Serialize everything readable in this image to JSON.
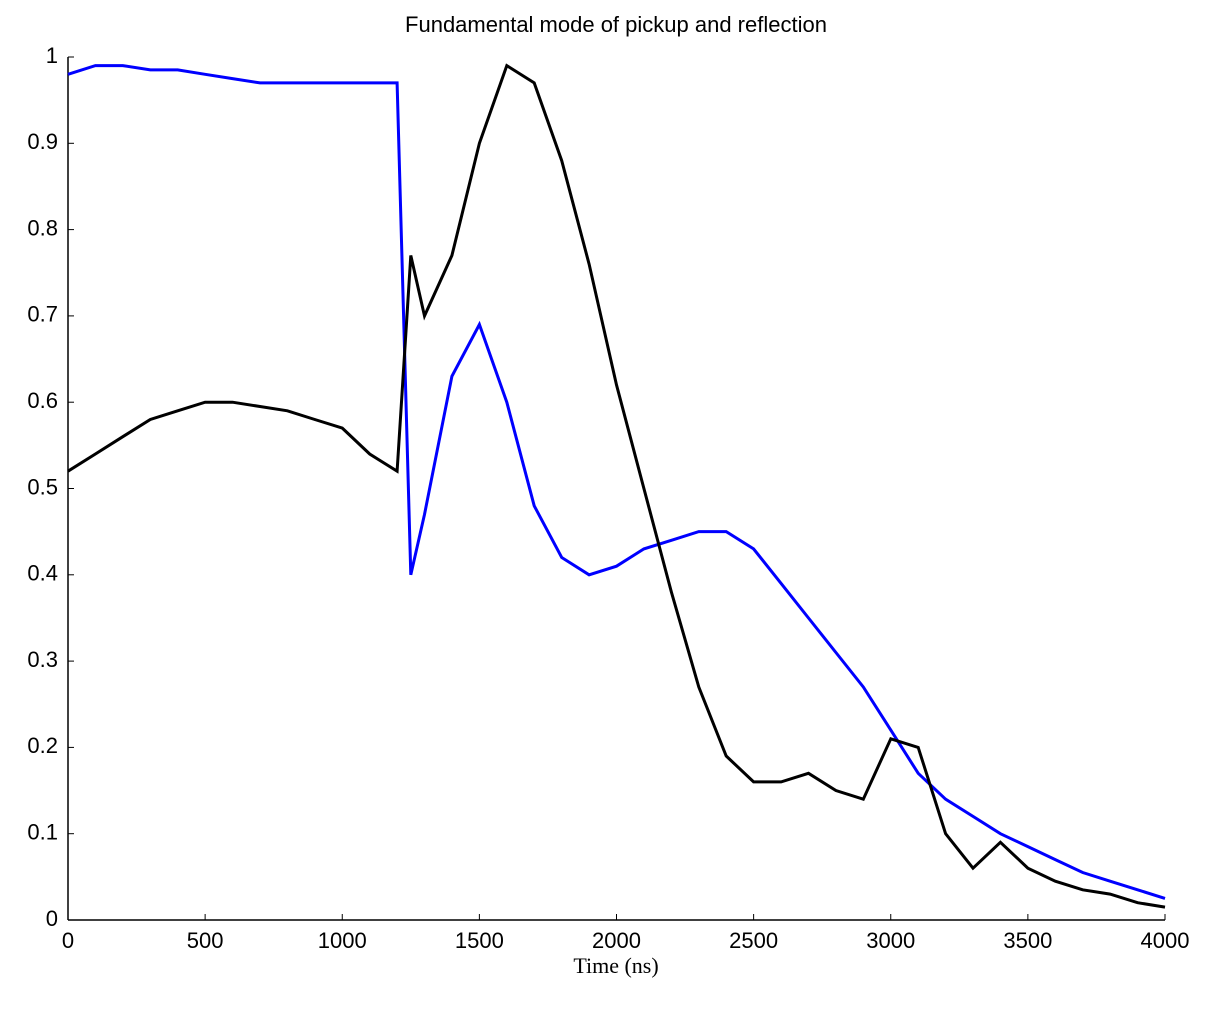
{
  "chart_data": {
    "type": "line",
    "title": "Fundamental mode of pickup and reflection",
    "x_label": "Time (ns)",
    "x": [
      0,
      100,
      200,
      300,
      400,
      500,
      600,
      700,
      800,
      900,
      1000,
      1100,
      1200,
      1250,
      1300,
      1400,
      1500,
      1600,
      1700,
      1800,
      1900,
      2000,
      2100,
      2200,
      2300,
      2400,
      2500,
      2600,
      2700,
      2800,
      2900,
      3000,
      3100,
      3200,
      3300,
      3400,
      3500,
      3600,
      3700,
      3800,
      3900,
      4000
    ],
    "series": [
      {
        "color": "#0000ff",
        "values": [
          0.98,
          0.99,
          0.99,
          0.985,
          0.985,
          0.98,
          0.975,
          0.97,
          0.97,
          0.97,
          0.97,
          0.97,
          0.97,
          0.4,
          0.47,
          0.63,
          0.69,
          0.6,
          0.48,
          0.42,
          0.4,
          0.41,
          0.43,
          0.44,
          0.45,
          0.45,
          0.43,
          0.39,
          0.35,
          0.31,
          0.27,
          0.22,
          0.17,
          0.14,
          0.12,
          0.1,
          0.085,
          0.07,
          0.055,
          0.045,
          0.035,
          0.025
        ]
      },
      {
        "color": "#000000",
        "values": [
          0.52,
          0.54,
          0.56,
          0.58,
          0.59,
          0.6,
          0.6,
          0.595,
          0.59,
          0.58,
          0.57,
          0.54,
          0.52,
          0.77,
          0.7,
          0.77,
          0.9,
          0.99,
          0.97,
          0.88,
          0.76,
          0.62,
          0.5,
          0.38,
          0.27,
          0.19,
          0.16,
          0.16,
          0.17,
          0.15,
          0.14,
          0.21,
          0.2,
          0.1,
          0.06,
          0.09,
          0.06,
          0.045,
          0.035,
          0.03,
          0.02,
          0.015
        ]
      }
    ],
    "xlim": [
      0,
      4000
    ],
    "xticks": [
      0,
      500,
      1000,
      1500,
      2000,
      2500,
      3000,
      3500,
      4000
    ],
    "ylim": [
      0,
      1
    ],
    "yticks": [
      0,
      0.1,
      0.2,
      0.3,
      0.4,
      0.5,
      0.6,
      0.7,
      0.8,
      0.9,
      1
    ]
  }
}
